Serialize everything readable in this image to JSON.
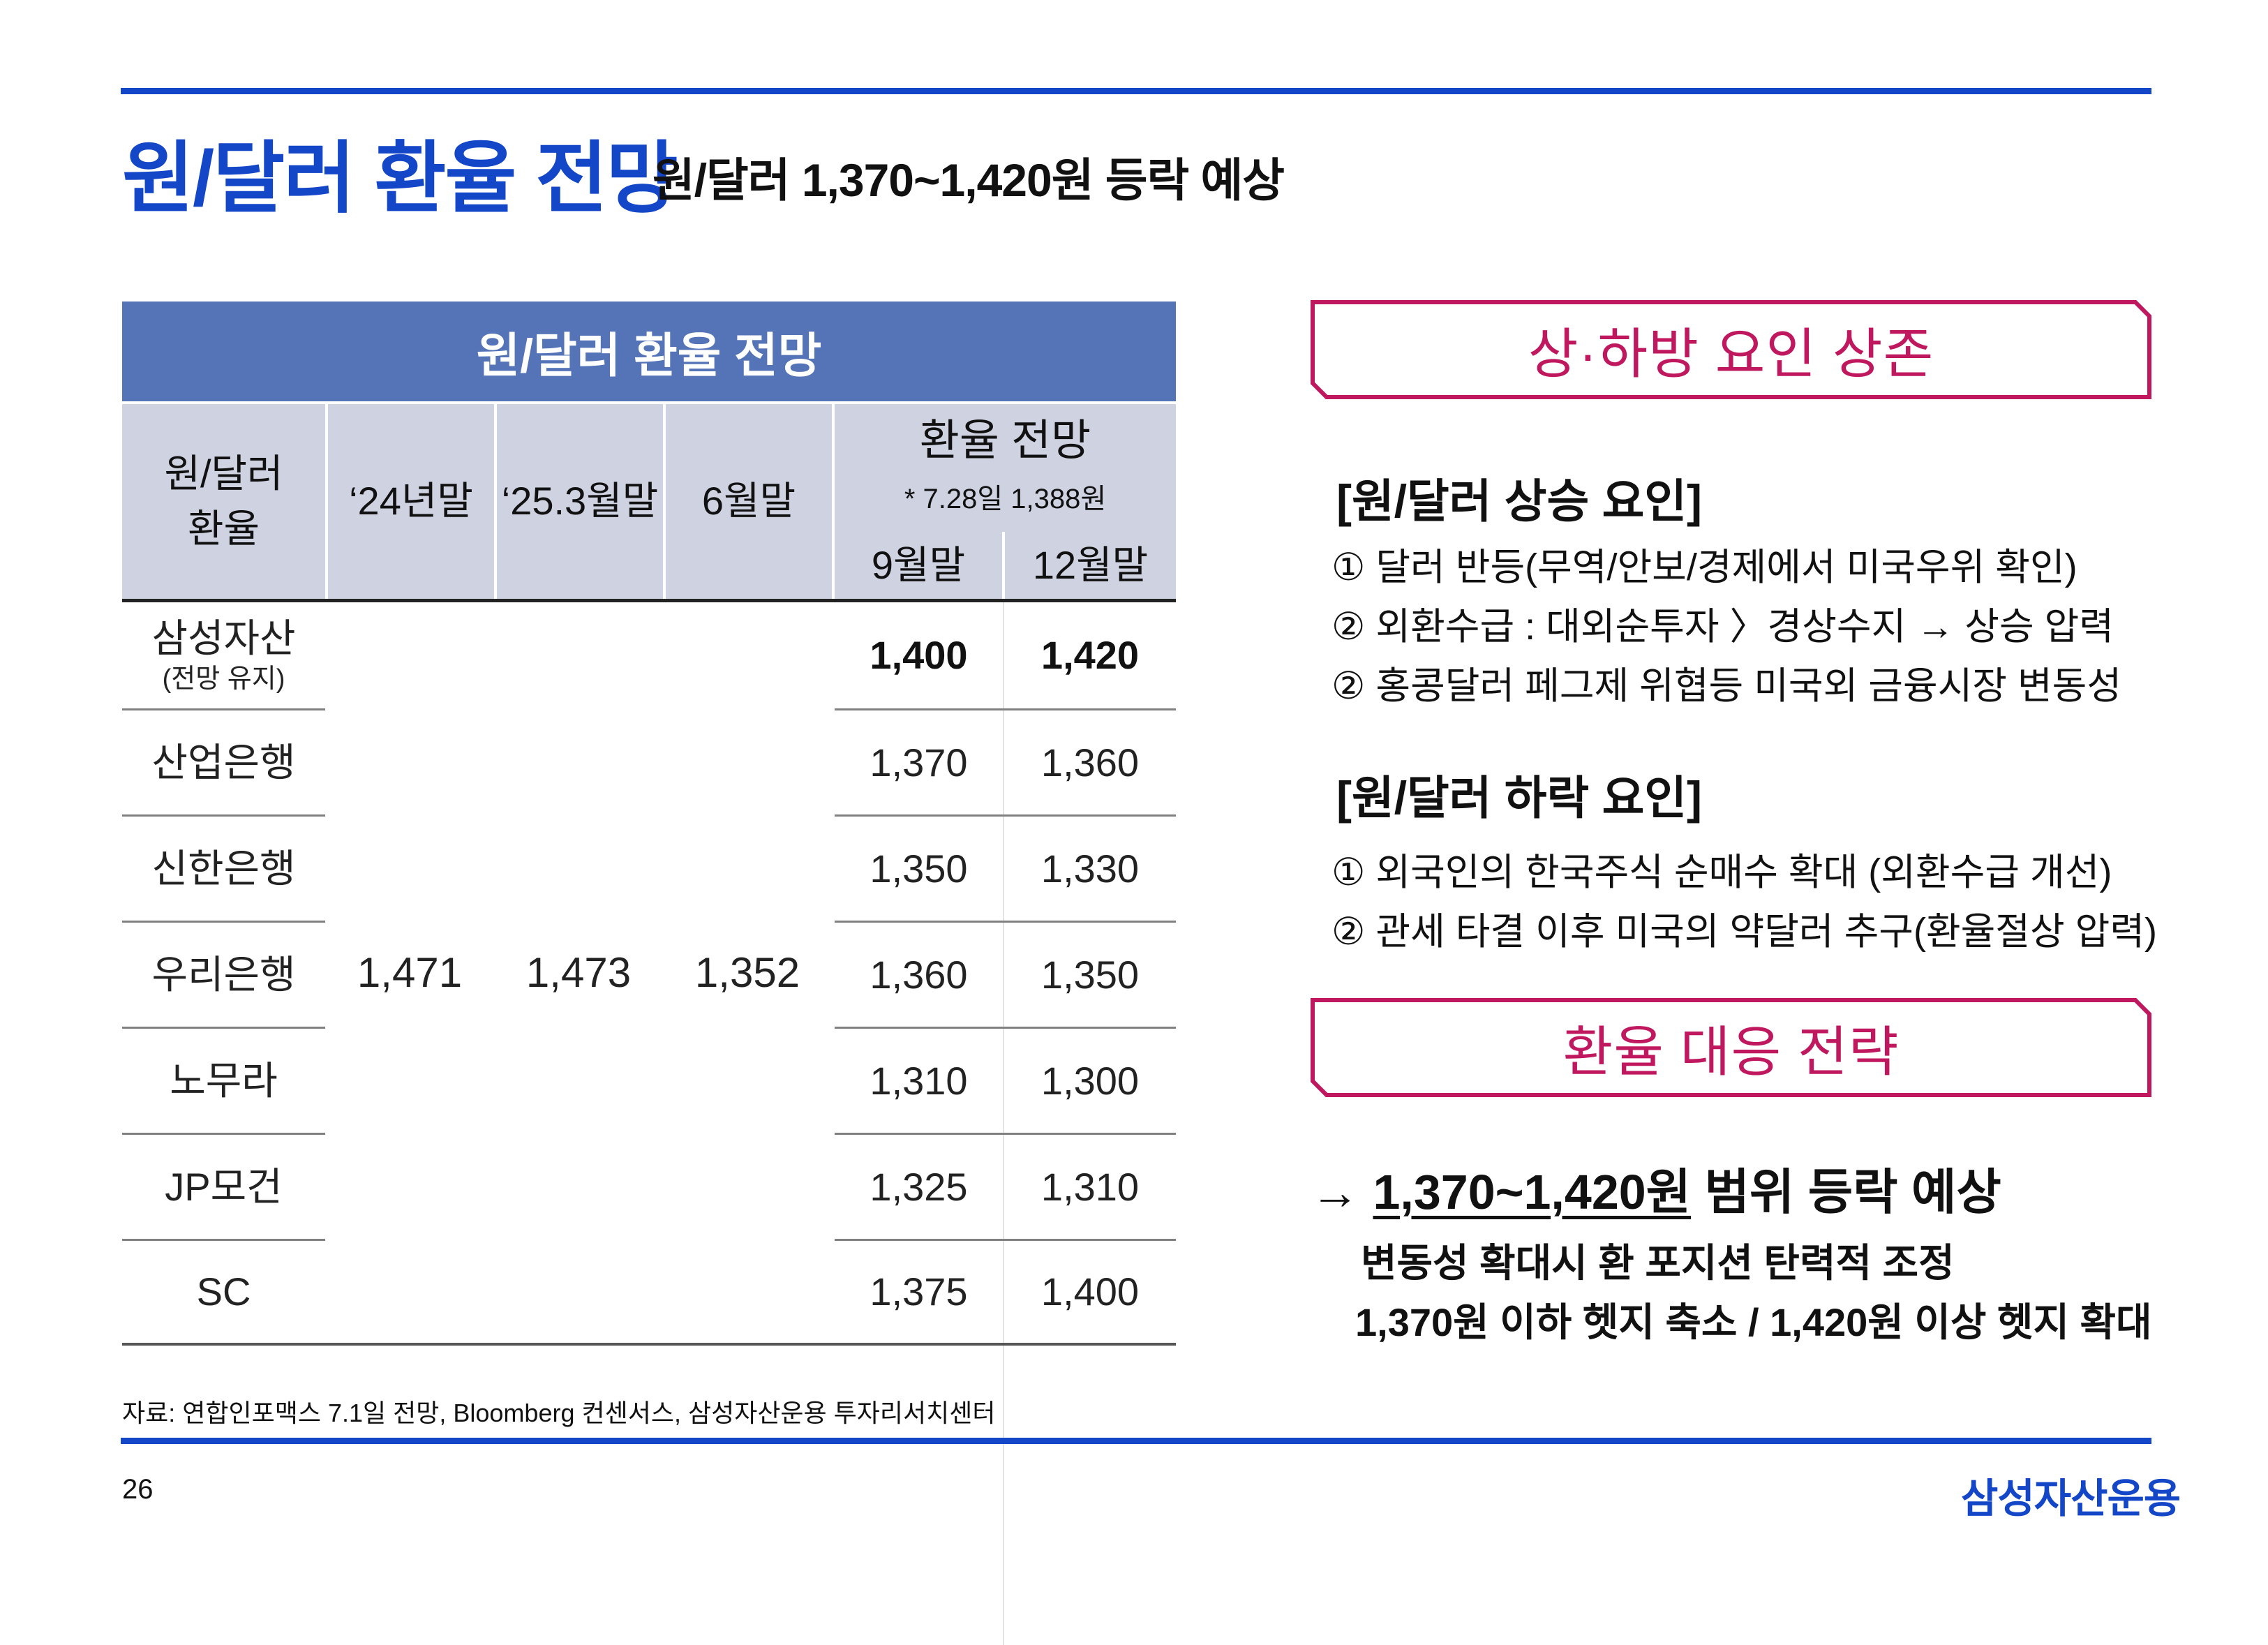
{
  "page": {
    "title": "원/달러 환율 전망",
    "subtitle": "원/달러 1,370~1,420원 등락 예상",
    "page_number": "26",
    "logo": "삼성자산운용",
    "source": "자료: 연합인포맥스 7.1일 전망, Bloomberg 컨센서스, 삼성자산운용 투자리서치센터"
  },
  "table": {
    "title": "원/달러 환율 전망",
    "header": {
      "col0_line1": "원/달러",
      "col0_line2": "환율",
      "col1": "‘24년말",
      "col2": "‘25.3월말",
      "col3": "6월말",
      "forecast": "환율 전망",
      "forecast_note": "* 7.28일 1,388원",
      "col4": "9월말",
      "col5": "12월말"
    },
    "shared": {
      "y24_end": "1,471",
      "m25_3_end": "1,473",
      "m6_end": "1,352"
    },
    "rows": [
      {
        "name": "삼성자산",
        "note": "(전망 유지)",
        "sep": "1,400",
        "dec": "1,420"
      },
      {
        "name": "산업은행",
        "sep": "1,370",
        "dec": "1,360"
      },
      {
        "name": "신한은행",
        "sep": "1,350",
        "dec": "1,330"
      },
      {
        "name": "우리은행",
        "sep": "1,360",
        "dec": "1,350"
      },
      {
        "name": "노무라",
        "sep": "1,310",
        "dec": "1,300"
      },
      {
        "name": "JP모건",
        "sep": "1,325",
        "dec": "1,310"
      },
      {
        "name": "SC",
        "sep": "1,375",
        "dec": "1,400"
      }
    ]
  },
  "factors": {
    "box_title": "상·하방 요인 상존",
    "up_heading": "[원/달러 상승 요인]",
    "up_items": [
      "① 달러 반등(무역/안보/경제에서 미국우위 확인)",
      "② 외환수급 : 대외순투자 〉경상수지 → 상승 압력",
      "② 홍콩달러 페그제 위협등 미국외 금융시장 변동성"
    ],
    "down_heading": "[원/달러 하락 요인]",
    "down_items": [
      "① 외국인의 한국주식 순매수 확대 (외환수급 개선)",
      "② 관세 타결 이후 미국의 약달러 추구(환율절상 압력)"
    ]
  },
  "strategy": {
    "box_title": "환율 대응 전략",
    "arrow": "→",
    "range": "1,370~1,420원",
    "range_suffix": " 범위 등락 예상",
    "line1": "변동성 확대시 환 포지션 탄력적 조정",
    "line2": "1,370원 이하 헷지 축소 / 1,420원 이상 헷지 확대"
  }
}
